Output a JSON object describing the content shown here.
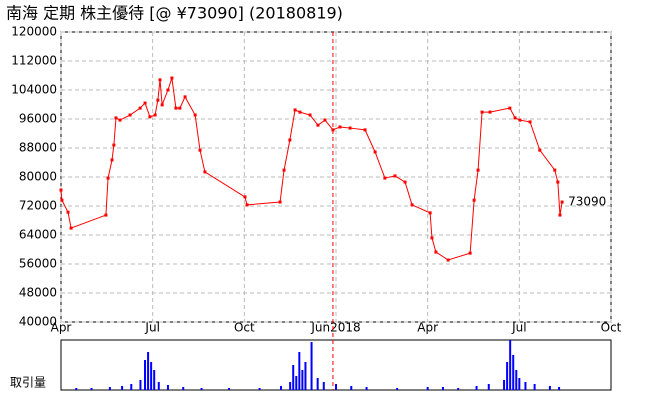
{
  "chart_data": {
    "type": "line",
    "title": "南海 定期 株主優待  [@ ¥73090] (20180819)",
    "xlim": [
      0,
      18
    ],
    "xticks": [
      {
        "value": 0,
        "label": "Apr"
      },
      {
        "value": 3,
        "label": "Jul"
      },
      {
        "value": 6,
        "label": "Oct"
      },
      {
        "value": 9,
        "label": "Jun2018"
      },
      {
        "value": 12,
        "label": "Apr"
      },
      {
        "value": 15,
        "label": "Jul"
      },
      {
        "value": 18,
        "label": "Oct"
      }
    ],
    "ylim": [
      40000,
      120000
    ],
    "yticks": [
      40000,
      48000,
      56000,
      64000,
      72000,
      80000,
      88000,
      96000,
      104000,
      112000,
      120000
    ],
    "grid": true,
    "divider_x": 8.9,
    "series": [
      {
        "color": "#ff0000",
        "x": [
          0,
          0.03,
          0.23,
          0.33,
          1.47,
          1.54,
          1.67,
          1.73,
          1.8,
          1.93,
          2.26,
          2.59,
          2.75,
          2.91,
          3.08,
          3.17,
          3.24,
          3.31,
          3.5,
          3.63,
          3.76,
          3.89,
          4.06,
          4.39,
          4.55,
          4.71,
          6.02,
          6.09,
          7.17,
          7.3,
          7.49,
          7.66,
          7.82,
          8.15,
          8.41,
          8.64,
          8.9,
          9.13,
          9.46,
          9.95,
          10.28,
          10.6,
          10.93,
          11.26,
          11.49,
          12.08,
          12.14,
          12.27,
          12.67,
          13.39,
          13.52,
          13.65,
          13.78,
          14.04,
          14.69,
          14.86,
          15.02,
          15.35,
          15.67,
          16.16,
          16.26,
          16.33,
          16.4
        ],
        "values": [
          76400,
          73600,
          70300,
          65900,
          69500,
          79700,
          84700,
          88800,
          96300,
          95700,
          97100,
          99000,
          100400,
          96600,
          97100,
          101200,
          106800,
          99900,
          104000,
          107300,
          99000,
          99000,
          102100,
          97100,
          87400,
          81400,
          74500,
          72300,
          73100,
          81900,
          90200,
          98500,
          97900,
          97100,
          94300,
          95700,
          93000,
          93800,
          93500,
          93000,
          86900,
          79700,
          80300,
          78600,
          72300,
          70100,
          63200,
          59300,
          57100,
          59000,
          73600,
          81900,
          97900,
          97900,
          99000,
          96300,
          95700,
          95200,
          87400,
          81900,
          78600,
          69500,
          73090
        ]
      }
    ],
    "volume": {
      "label": "取引量",
      "color": "#0000ff",
      "ylim": [
        0,
        50
      ],
      "x": [
        0.5,
        1.0,
        1.6,
        2.0,
        2.3,
        2.6,
        2.75,
        2.85,
        2.95,
        3.05,
        3.2,
        3.5,
        4.0,
        4.6,
        5.5,
        6.5,
        7.2,
        7.5,
        7.6,
        7.7,
        7.8,
        7.9,
        8.0,
        8.2,
        8.4,
        8.6,
        9.0,
        9.5,
        10.0,
        11.0,
        12.0,
        12.5,
        13.0,
        13.6,
        14.0,
        14.5,
        14.6,
        14.7,
        14.8,
        14.9,
        15.0,
        15.2,
        15.5,
        16.0,
        16.3
      ],
      "values": [
        2,
        2,
        3,
        4,
        6,
        10,
        30,
        38,
        28,
        20,
        8,
        5,
        3,
        2,
        2,
        2,
        4,
        8,
        25,
        14,
        38,
        20,
        28,
        48,
        12,
        8,
        6,
        4,
        3,
        2,
        3,
        3,
        2,
        4,
        6,
        10,
        28,
        50,
        35,
        20,
        12,
        8,
        6,
        4,
        3
      ]
    }
  }
}
